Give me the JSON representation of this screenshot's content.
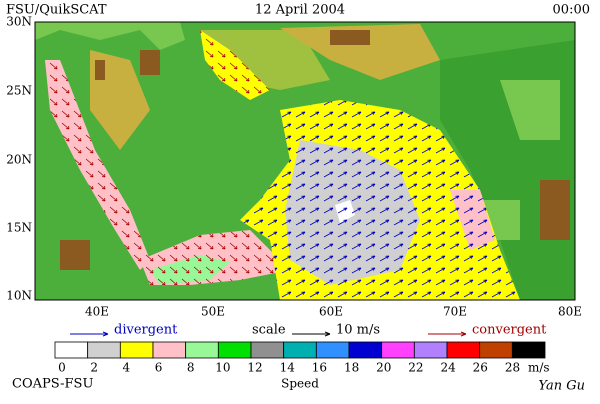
{
  "header": {
    "left": "FSU/QuikSCAT",
    "center": "12 April 2004",
    "right": "00:00"
  },
  "map": {
    "lat_labels": [
      "30N",
      "25N",
      "20N",
      "15N",
      "10N"
    ],
    "lon_labels": [
      "40E",
      "50E",
      "60E",
      "70E",
      "80E"
    ]
  },
  "legend": {
    "divergent": "divergent",
    "scale": "scale",
    "scale_value": "10 m/s",
    "convergent": "convergent"
  },
  "colorbar": {
    "labels": [
      "0",
      "2",
      "4",
      "6",
      "8",
      "10",
      "12",
      "14",
      "16",
      "18",
      "20",
      "22",
      "24",
      "26",
      "28"
    ],
    "unit": "m/s",
    "title": "Speed",
    "colors": [
      "#ffffff",
      "#d0d0d0",
      "#ffff00",
      "#ffc0c8",
      "#98f898",
      "#00e000",
      "#909090",
      "#00b0b0",
      "#3090ff",
      "#0000d0",
      "#ff40ff",
      "#b080ff",
      "#ff0000",
      "#c04000",
      "#000000"
    ]
  },
  "footer": {
    "left": "COAPS-FSU",
    "right": "Yan Gu"
  }
}
